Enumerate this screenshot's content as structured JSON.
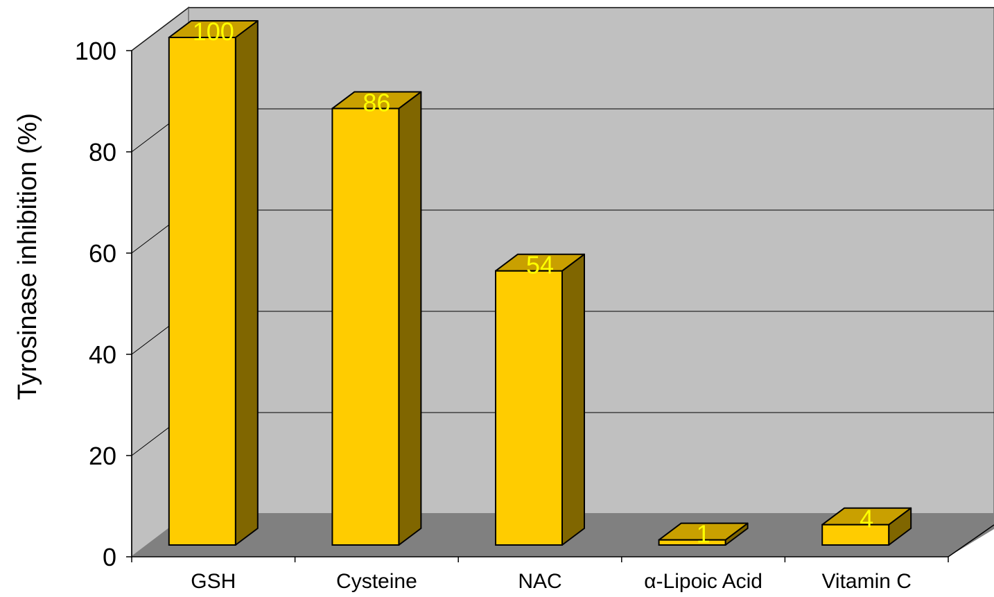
{
  "chart_data": {
    "type": "bar",
    "categories": [
      "GSH",
      "Cysteine",
      "NAC",
      "α-Lipoic Acid",
      "Vitamin C"
    ],
    "values": [
      100,
      86,
      54,
      1,
      4
    ],
    "data_labels": [
      "100",
      "86",
      "54",
      "1",
      "4"
    ],
    "title": "",
    "xlabel": "",
    "ylabel": "Tyrosinase inhibition (%)",
    "ylim": [
      0,
      100
    ],
    "yticks": [
      "0",
      "20",
      "40",
      "60",
      "80",
      "100"
    ],
    "grid": true,
    "legend": "none",
    "style": "3d-column"
  },
  "colors": {
    "bar_front": "#ffcc00",
    "bar_top": "#c9a000",
    "bar_side": "#806600",
    "back_wall": "#c0c0c0",
    "side_wall": "#c0c0c0",
    "floor": "#808080",
    "data_label": "#ffff00"
  }
}
